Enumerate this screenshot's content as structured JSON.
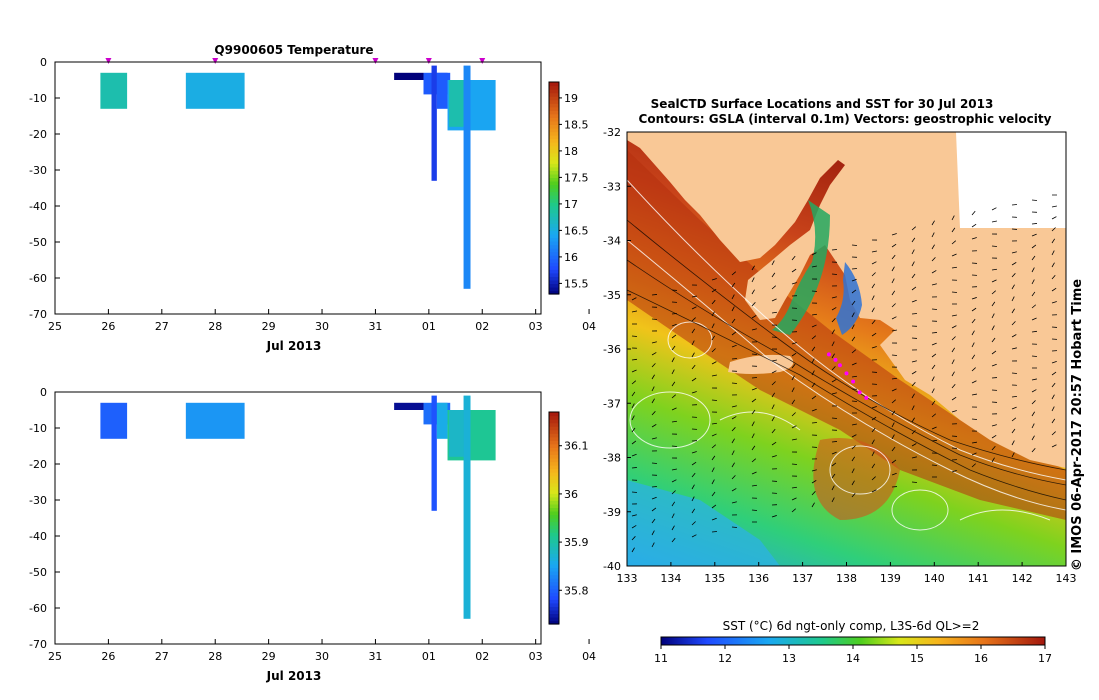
{
  "chart_data": [
    {
      "type": "bar",
      "name": "temperature-profile",
      "title": "Q9900605  Temperature",
      "xlabel": "Jul 2013",
      "x_ticks": [
        "25",
        "26",
        "27",
        "28",
        "29",
        "30",
        "31",
        "01",
        "02",
        "03",
        "04"
      ],
      "y_ticks": [
        "0",
        "-10",
        "-20",
        "-30",
        "-40",
        "-50",
        "-60",
        "-70"
      ],
      "xlim": [
        25,
        34.1
      ],
      "ylim": [
        -70,
        0
      ],
      "colorbar": {
        "min": 15.3,
        "max": 19.3,
        "ticks": [
          "15.5",
          "16",
          "16.5",
          "17",
          "17.5",
          "18",
          "18.5",
          "19"
        ],
        "tick_values": [
          15.5,
          16,
          16.5,
          17,
          17.5,
          18,
          18.5,
          19
        ]
      },
      "markers": [
        26.0,
        28.0,
        31.0,
        32.0,
        33.0
      ],
      "bars": [
        {
          "x0": 25.85,
          "x1": 26.35,
          "y0": -3,
          "y1": -13,
          "value": 16.8
        },
        {
          "x0": 27.45,
          "x1": 28.55,
          "y0": -3,
          "y1": -13,
          "value": 16.5
        },
        {
          "x0": 31.35,
          "x1": 31.9,
          "y0": -3,
          "y1": -5,
          "value": 15.2
        },
        {
          "x0": 31.9,
          "x1": 32.4,
          "y0": -3,
          "y1": -9,
          "value": 15.9
        },
        {
          "x0": 32.05,
          "x1": 32.15,
          "y0": -1,
          "y1": -33,
          "value": 15.7
        },
        {
          "x0": 32.15,
          "x1": 32.35,
          "y0": -3,
          "y1": -13,
          "value": 15.9
        },
        {
          "x0": 32.35,
          "x1": 33.25,
          "y0": -5,
          "y1": -19,
          "value": 16.4
        },
        {
          "x0": 32.38,
          "x1": 32.65,
          "y0": -5,
          "y1": -18,
          "value": 16.8
        },
        {
          "x0": 32.65,
          "x1": 32.78,
          "y0": -1,
          "y1": -63,
          "value": 16.2
        }
      ]
    },
    {
      "type": "bar",
      "name": "salinity-profile",
      "xlabel": "Jul 2013",
      "x_ticks": [
        "25",
        "26",
        "27",
        "28",
        "29",
        "30",
        "31",
        "01",
        "02",
        "03",
        "04"
      ],
      "y_ticks": [
        "0",
        "-10",
        "-20",
        "-30",
        "-40",
        "-50",
        "-60",
        "-70"
      ],
      "xlim": [
        25,
        34.1
      ],
      "ylim": [
        -70,
        0
      ],
      "colorbar": {
        "min": 35.73,
        "max": 36.17,
        "ticks": [
          "35.8",
          "35.9",
          "36",
          "36.1"
        ],
        "tick_values": [
          35.8,
          35.9,
          36,
          36.1
        ]
      },
      "bars": [
        {
          "x0": 25.85,
          "x1": 26.35,
          "y0": -3,
          "y1": -13,
          "value": 35.8
        },
        {
          "x0": 27.45,
          "x1": 28.55,
          "y0": -3,
          "y1": -13,
          "value": 35.84
        },
        {
          "x0": 31.35,
          "x1": 31.9,
          "y0": -3,
          "y1": -5,
          "value": 35.74
        },
        {
          "x0": 31.9,
          "x1": 32.4,
          "y0": -3,
          "y1": -9,
          "value": 35.81
        },
        {
          "x0": 32.05,
          "x1": 32.15,
          "y0": -1,
          "y1": -33,
          "value": 35.79
        },
        {
          "x0": 32.15,
          "x1": 32.35,
          "y0": -3,
          "y1": -13,
          "value": 35.86
        },
        {
          "x0": 32.35,
          "x1": 33.25,
          "y0": -5,
          "y1": -19,
          "value": 35.91
        },
        {
          "x0": 32.38,
          "x1": 32.65,
          "y0": -5,
          "y1": -18,
          "value": 35.88
        },
        {
          "x0": 32.65,
          "x1": 32.78,
          "y0": -1,
          "y1": -63,
          "value": 35.87
        }
      ]
    },
    {
      "type": "heatmap",
      "name": "sst-map",
      "title_line1": "SealCTD Surface Locations and SST for 30 Jul 2013",
      "title_line2": "Contours: GSLA (interval 0.1m) Vectors: geostrophic velocity",
      "xlim": [
        133,
        143
      ],
      "ylim": [
        -40,
        -32
      ],
      "x_ticks": [
        "133",
        "134",
        "135",
        "136",
        "137",
        "138",
        "139",
        "140",
        "141",
        "142",
        "143"
      ],
      "y_ticks": [
        "-32",
        "-33",
        "-34",
        "-35",
        "-36",
        "-37",
        "-38",
        "-39",
        "-40"
      ],
      "colorbar_label": "SST (°C) 6d ngt-only comp, L3S-6d QL>=2",
      "colorbar": {
        "min": 11,
        "max": 17,
        "ticks": [
          "11",
          "12",
          "13",
          "14",
          "15",
          "16",
          "17"
        ]
      },
      "side_label": "© IMOS 06-Apr-2017 20:57 Hobart Time",
      "seal_track": [
        [
          137.6,
          -36.1
        ],
        [
          137.75,
          -36.2
        ],
        [
          137.85,
          -36.3
        ],
        [
          138.0,
          -36.45
        ],
        [
          138.15,
          -36.6
        ],
        [
          138.3,
          -36.8
        ],
        [
          138.45,
          -36.9
        ]
      ]
    }
  ],
  "colors": {
    "land": "#f9c896"
  }
}
